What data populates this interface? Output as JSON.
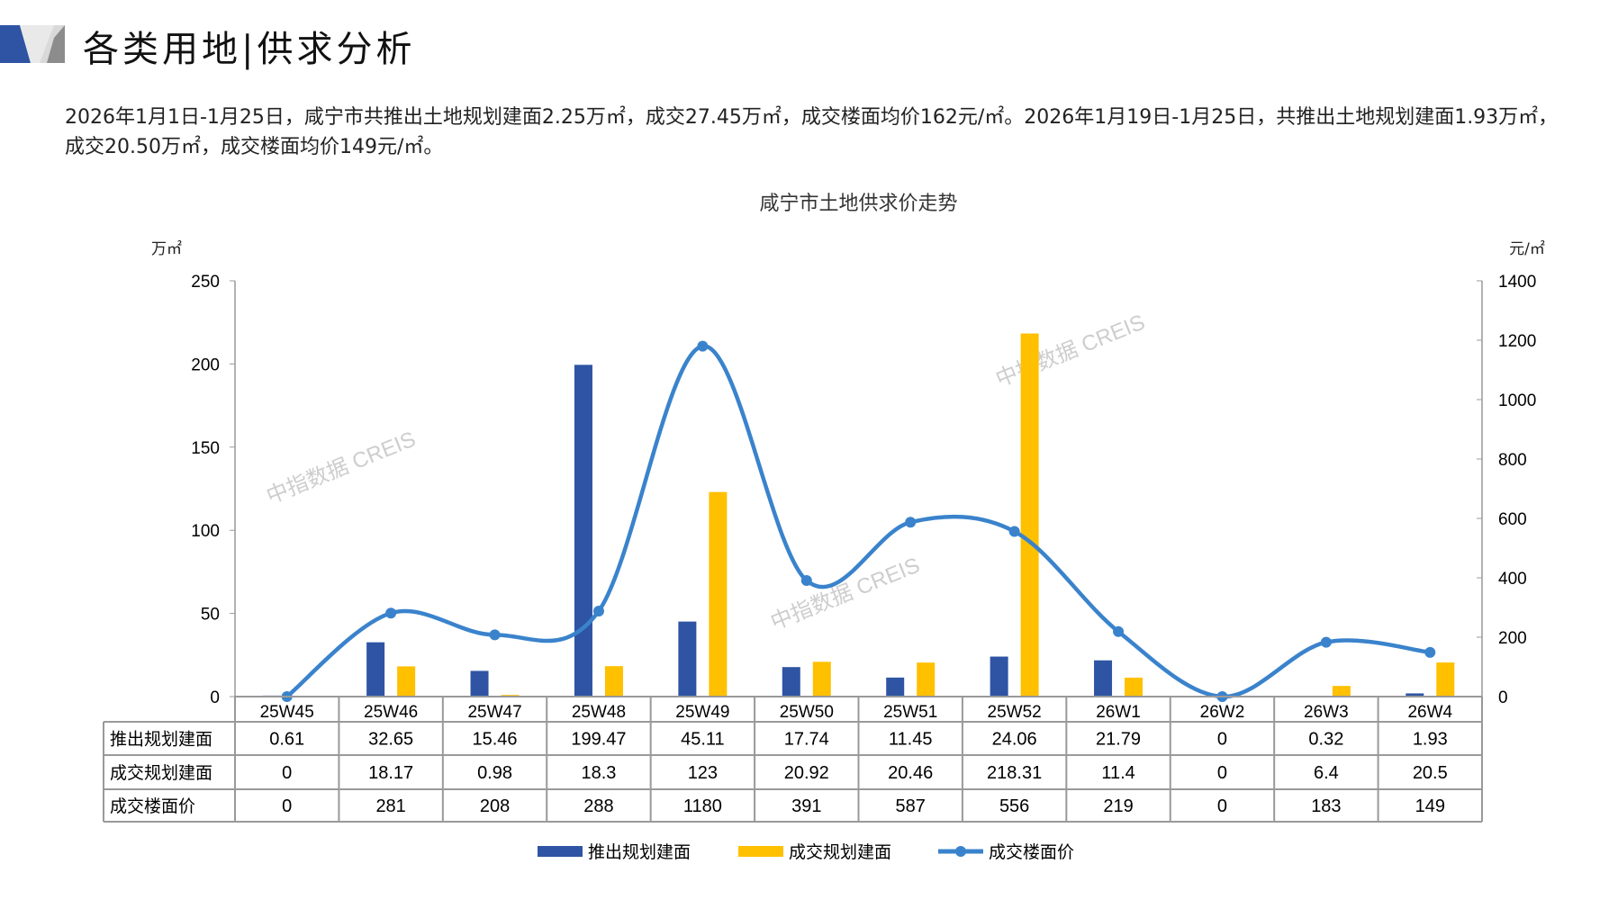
{
  "header": {
    "title": "各类用地|供求分析"
  },
  "description": "2026年1月1日-1月25日，咸宁市共推出土地规划建面2.25万㎡，成交27.45万㎡，成交楼面均价162元/㎡。2026年1月19日-1月25日，共推出土地规划建面1.93万㎡，成交20.50万㎡，成交楼面均价149元/㎡。",
  "watermark": "中指数据 CREIS",
  "colors": {
    "supply": "#2E54A3",
    "deal": "#FFC000",
    "price": "#3A83CC"
  },
  "chart_data": {
    "type": "bar+line",
    "title": "咸宁市土地供求价走势",
    "ylabel_left": "万㎡",
    "ylabel_right": "元/㎡",
    "ylim_left": [
      0,
      250
    ],
    "yticks_left": [
      "0",
      "50",
      "100",
      "150",
      "200",
      "250"
    ],
    "ylim_right": [
      0,
      1400
    ],
    "yticks_right": [
      "0",
      "200",
      "400",
      "600",
      "800",
      "1000",
      "1200",
      "1400"
    ],
    "categories": [
      "25W45",
      "25W46",
      "25W47",
      "25W48",
      "25W49",
      "25W50",
      "25W51",
      "25W52",
      "26W1",
      "26W2",
      "26W3",
      "26W4"
    ],
    "series": [
      {
        "name": "推出规划建面",
        "type": "bar",
        "axis": "left",
        "values": [
          0.61,
          32.65,
          15.46,
          199.47,
          45.11,
          17.74,
          11.45,
          24.06,
          21.79,
          0,
          0.32,
          1.93
        ],
        "labels": [
          "0.61",
          "32.65",
          "15.46",
          "199.47",
          "45.11",
          "17.74",
          "11.45",
          "24.06",
          "21.79",
          "0",
          "0.32",
          "1.93"
        ]
      },
      {
        "name": "成交规划建面",
        "type": "bar",
        "axis": "left",
        "values": [
          0,
          18.17,
          0.98,
          18.3,
          123,
          20.92,
          20.46,
          218.31,
          11.4,
          0,
          6.4,
          20.5
        ],
        "labels": [
          "0",
          "18.17",
          "0.98",
          "18.3",
          "123",
          "20.92",
          "20.46",
          "218.31",
          "11.4",
          "0",
          "6.4",
          "20.5"
        ]
      },
      {
        "name": "成交楼面价",
        "type": "line",
        "axis": "right",
        "values": [
          0,
          281,
          208,
          288,
          1180,
          391,
          587,
          556,
          219,
          0,
          183,
          149
        ],
        "labels": [
          "0",
          "281",
          "208",
          "288",
          "1180",
          "391",
          "587",
          "556",
          "219",
          "0",
          "183",
          "149"
        ]
      }
    ],
    "legend": "bottom",
    "data_table": true
  }
}
